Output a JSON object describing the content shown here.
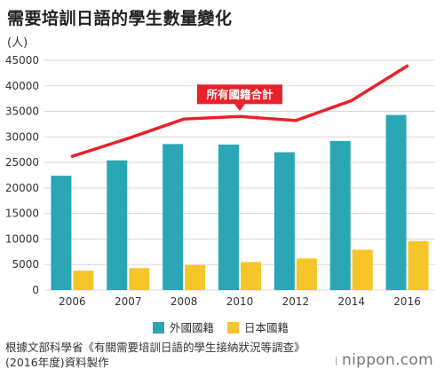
{
  "title": "需要培訓日語的學生數量變化",
  "source_line1": "根據文部科學省《有關需要培訓日語的學生接納狀況等調查》",
  "source_line2": "(2016年度)資料製作",
  "brand": "nippon.com",
  "colors": {
    "foreign": "#2ba6b4",
    "japanese": "#f6c528",
    "total_line": "#e8222a",
    "grid": "#d8d8d8"
  },
  "chart_data": {
    "type": "bar",
    "categories": [
      "2006",
      "2007",
      "2008",
      "2010",
      "2012",
      "2014",
      "2016"
    ],
    "series": [
      {
        "name": "外國國籍",
        "type": "bar",
        "values": [
          22400,
          25400,
          28600,
          28500,
          27000,
          29200,
          34300
        ]
      },
      {
        "name": "日本國籍",
        "type": "bar",
        "values": [
          3800,
          4300,
          4900,
          5500,
          6200,
          7900,
          9600
        ]
      },
      {
        "name": "所有國籍合計",
        "type": "line",
        "values": [
          26200,
          29700,
          33500,
          34000,
          33200,
          37100,
          43900
        ]
      }
    ],
    "ylabel": "(人)",
    "ylim": [
      0,
      45000
    ],
    "yticks": [
      0,
      5000,
      10000,
      15000,
      20000,
      25000,
      30000,
      35000,
      40000,
      45000
    ],
    "annotation": "所有國籍合計",
    "grid": true,
    "legend_position": "bottom"
  }
}
